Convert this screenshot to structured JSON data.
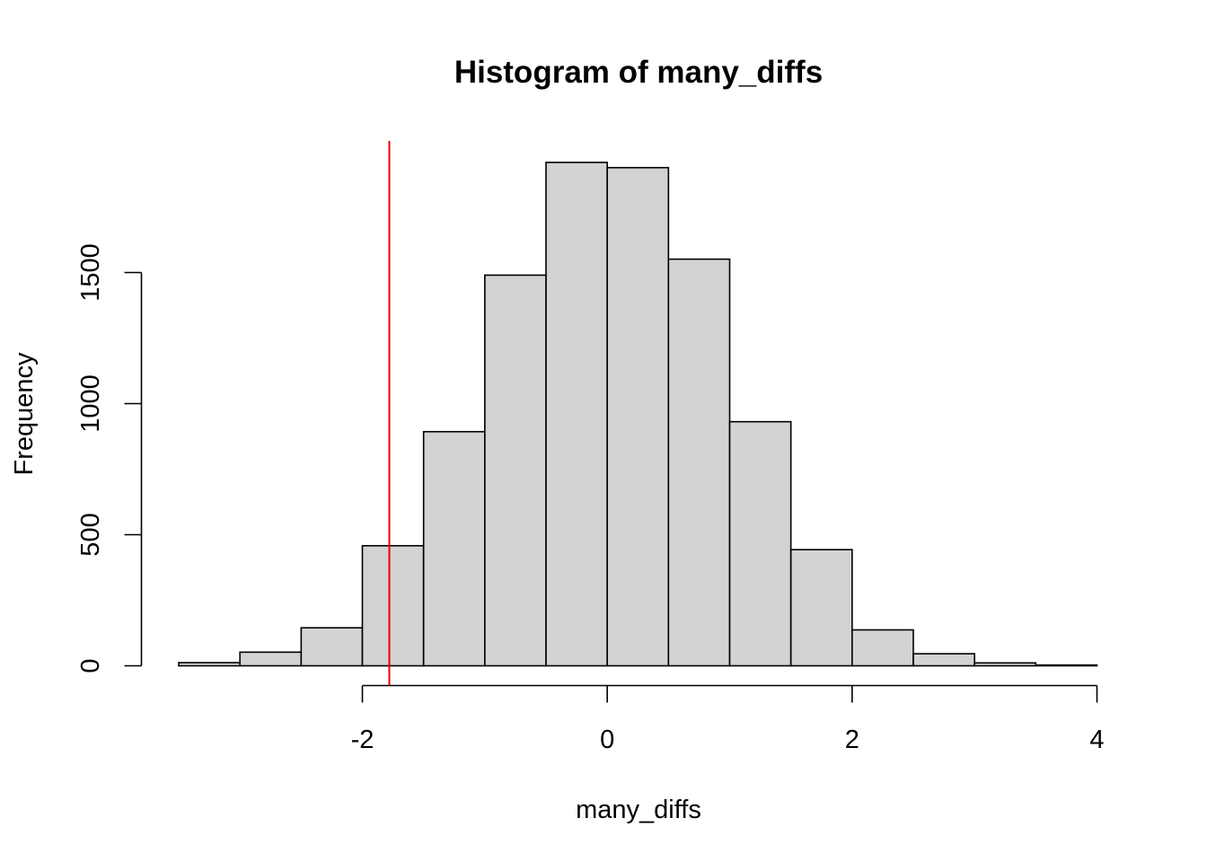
{
  "chart_data": {
    "type": "bar",
    "title": "Histogram of many_diffs",
    "xlabel": "many_diffs",
    "ylabel": "Frequency",
    "bins": [
      {
        "start": -3.5,
        "end": -3.0,
        "count": 12
      },
      {
        "start": -3.0,
        "end": -2.5,
        "count": 52
      },
      {
        "start": -2.5,
        "end": -2.0,
        "count": 145
      },
      {
        "start": -2.0,
        "end": -1.5,
        "count": 458
      },
      {
        "start": -1.5,
        "end": -1.0,
        "count": 893
      },
      {
        "start": -1.0,
        "end": -0.5,
        "count": 1490
      },
      {
        "start": -0.5,
        "end": 0.0,
        "count": 1920
      },
      {
        "start": 0.0,
        "end": 0.5,
        "count": 1900
      },
      {
        "start": 0.5,
        "end": 1.0,
        "count": 1551
      },
      {
        "start": 1.0,
        "end": 1.5,
        "count": 931
      },
      {
        "start": 1.5,
        "end": 2.0,
        "count": 443
      },
      {
        "start": 2.0,
        "end": 2.5,
        "count": 137
      },
      {
        "start": 2.5,
        "end": 3.0,
        "count": 46
      },
      {
        "start": 3.0,
        "end": 3.5,
        "count": 11
      },
      {
        "start": 3.5,
        "end": 4.0,
        "count": 3
      }
    ],
    "xlim": [
      -3.5,
      4.0
    ],
    "ylim": [
      0,
      1920
    ],
    "xticks": [
      -2,
      0,
      2,
      4
    ],
    "xtick_labels": [
      "-2",
      "0",
      "2",
      "4"
    ],
    "yticks": [
      0,
      500,
      1000,
      1500
    ],
    "ytick_labels": [
      "0",
      "500",
      "1000",
      "1500"
    ],
    "reference_line": {
      "x": -1.78,
      "color": "#ee0000"
    },
    "bar_color": "#d3d3d3",
    "grid": false,
    "legend": "none"
  }
}
